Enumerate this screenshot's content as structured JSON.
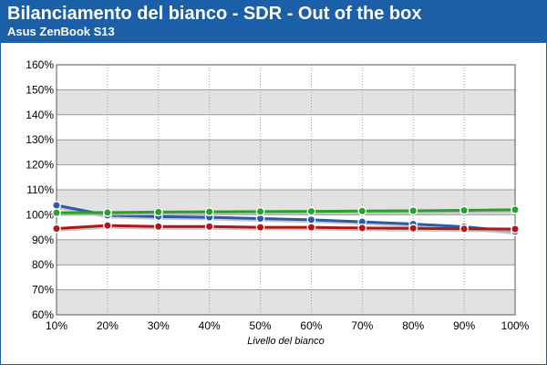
{
  "header": {
    "title": "Bilanciamento del bianco - SDR - Out of the box",
    "subtitle": "Asus ZenBook S13"
  },
  "colors": {
    "header_bg": "#1a5fa8",
    "band_gray": "#e2e2e2",
    "red": "#b01818",
    "green": "#2aa02a",
    "blue": "#2a5aa8"
  },
  "chart_data": {
    "type": "line",
    "title": "Bilanciamento del bianco - SDR - Out of the box",
    "subtitle": "Asus ZenBook S13",
    "xlabel": "Livello del bianco",
    "ylabel": "",
    "x": [
      "10%",
      "20%",
      "30%",
      "40%",
      "50%",
      "60%",
      "70%",
      "80%",
      "90%",
      "100%"
    ],
    "ylim": [
      60,
      160
    ],
    "y_ticks": [
      "60%",
      "70%",
      "80%",
      "90%",
      "100%",
      "110%",
      "120%",
      "130%",
      "140%",
      "150%",
      "160%"
    ],
    "grid": true,
    "series": [
      {
        "color": "#2a5aa8",
        "values": [
          103.8,
          99.8,
          99.3,
          99.0,
          98.5,
          98.0,
          97.2,
          96.3,
          95.2,
          93.3
        ]
      },
      {
        "color": "#2aa02a",
        "values": [
          100.8,
          100.9,
          101.1,
          101.2,
          101.3,
          101.4,
          101.5,
          101.6,
          101.8,
          102.0
        ]
      },
      {
        "color": "#b01818",
        "values": [
          94.5,
          95.7,
          95.3,
          95.3,
          95.0,
          95.0,
          94.7,
          94.6,
          94.4,
          94.3
        ]
      }
    ]
  }
}
